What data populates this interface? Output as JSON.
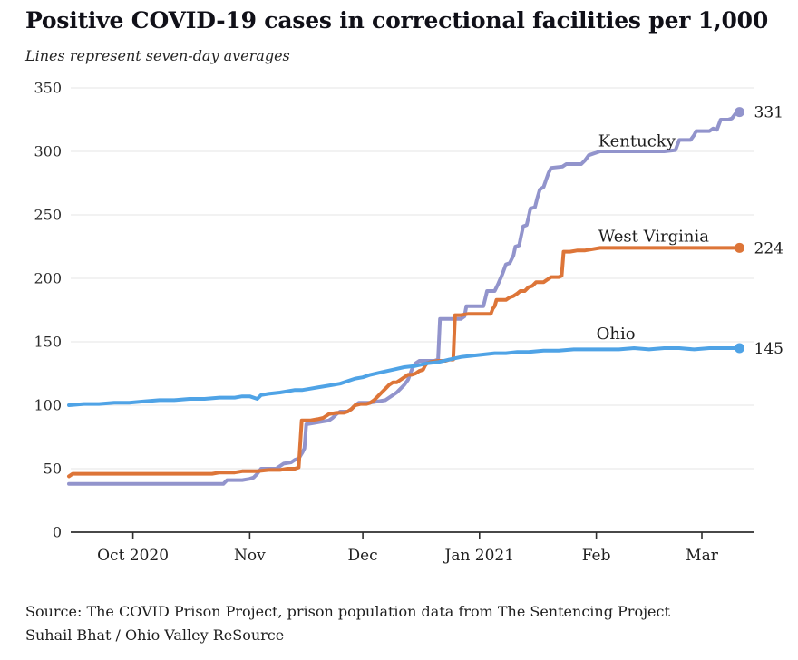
{
  "header": {
    "title": "Positive COVID-19 cases in correctional facilities per 1,000",
    "subtitle": "Lines represent seven-day averages"
  },
  "footer": {
    "source_line1": "Source: The COVID Prison Project, prison population data from The Sentencing Project",
    "source_line2": "Suhail Bhat / Ohio Valley ReSource"
  },
  "chart_data": {
    "type": "line",
    "title": "Positive COVID-19 cases in correctional facilities per 1,000",
    "subtitle": "Lines represent seven-day averages",
    "xlabel": "",
    "ylabel": "",
    "ylim": [
      0,
      350
    ],
    "grid": "horizontal",
    "legend_position": "inline-labels-right",
    "x_axis": {
      "unit": "days (day 0 ≈ mid-September 2020, day 178 ≈ March 11, 2021)",
      "ticks": [
        {
          "label": "Oct 2020",
          "day": 17
        },
        {
          "label": "Nov",
          "day": 48
        },
        {
          "label": "Dec",
          "day": 78
        },
        {
          "label": "Jan 2021",
          "day": 109
        },
        {
          "label": "Feb",
          "day": 140
        },
        {
          "label": "Mar",
          "day": 168
        }
      ]
    },
    "y_axis": {
      "ticks": [
        0,
        50,
        100,
        150,
        200,
        250,
        300,
        350
      ]
    },
    "series": [
      {
        "name": "Kentucky",
        "color": "#9294cc",
        "end_label": "331",
        "end_value": 331,
        "label_anchor": {
          "day": 140.5,
          "value": 304
        },
        "points": [
          [
            0,
            38
          ],
          [
            12,
            38
          ],
          [
            24,
            38
          ],
          [
            36,
            38
          ],
          [
            41,
            38
          ],
          [
            42,
            41
          ],
          [
            46,
            41
          ],
          [
            48,
            42
          ],
          [
            49,
            43
          ],
          [
            50,
            46
          ],
          [
            51,
            50
          ],
          [
            55,
            50
          ],
          [
            56,
            52
          ],
          [
            57,
            54
          ],
          [
            59,
            55
          ],
          [
            60,
            57
          ],
          [
            61,
            58
          ],
          [
            62,
            63
          ],
          [
            62.5,
            66
          ],
          [
            63,
            85
          ],
          [
            65,
            86
          ],
          [
            67,
            87
          ],
          [
            69,
            88
          ],
          [
            70,
            90
          ],
          [
            71,
            93
          ],
          [
            72,
            95
          ],
          [
            74,
            95
          ],
          [
            75,
            97
          ],
          [
            76,
            100
          ],
          [
            77,
            102
          ],
          [
            80,
            102
          ],
          [
            82,
            103
          ],
          [
            84,
            104
          ],
          [
            85,
            106
          ],
          [
            86,
            108
          ],
          [
            87,
            110
          ],
          [
            88,
            113
          ],
          [
            89,
            116
          ],
          [
            90,
            120
          ],
          [
            90.5,
            124
          ],
          [
            91,
            128
          ],
          [
            91.5,
            131
          ],
          [
            92,
            133
          ],
          [
            93,
            135
          ],
          [
            97,
            135
          ],
          [
            98,
            136
          ],
          [
            98.5,
            168
          ],
          [
            104,
            168
          ],
          [
            105,
            170
          ],
          [
            105.5,
            178
          ],
          [
            110,
            178
          ],
          [
            110.5,
            184
          ],
          [
            111,
            190
          ],
          [
            113,
            190
          ],
          [
            114,
            196
          ],
          [
            115,
            203
          ],
          [
            116,
            211
          ],
          [
            117,
            212
          ],
          [
            118,
            218
          ],
          [
            118.5,
            225
          ],
          [
            119.5,
            226
          ],
          [
            120,
            233
          ],
          [
            120.6,
            241
          ],
          [
            121.5,
            242
          ],
          [
            122,
            248
          ],
          [
            122.5,
            255
          ],
          [
            123.7,
            256
          ],
          [
            124.3,
            263
          ],
          [
            125,
            270
          ],
          [
            126,
            272
          ],
          [
            126.7,
            278
          ],
          [
            127.3,
            283
          ],
          [
            128,
            287
          ],
          [
            131,
            288
          ],
          [
            132,
            290
          ],
          [
            136,
            290
          ],
          [
            137,
            293
          ],
          [
            138,
            297
          ],
          [
            140,
            299
          ],
          [
            141,
            300
          ],
          [
            146,
            300
          ],
          [
            152,
            300
          ],
          [
            158,
            300
          ],
          [
            161,
            301
          ],
          [
            162,
            309
          ],
          [
            165,
            309
          ],
          [
            166,
            313
          ],
          [
            166.5,
            316
          ],
          [
            170,
            316
          ],
          [
            171,
            318
          ],
          [
            172,
            317
          ],
          [
            173,
            325
          ],
          [
            175,
            325
          ],
          [
            176,
            326
          ],
          [
            177,
            330
          ],
          [
            178,
            331
          ]
        ]
      },
      {
        "name": "West Virginia",
        "color": "#dd7538",
        "end_label": "224",
        "end_value": 224,
        "label_anchor": {
          "day": 140.5,
          "value": 229
        },
        "points": [
          [
            0,
            44
          ],
          [
            1,
            46
          ],
          [
            10,
            46
          ],
          [
            20,
            46
          ],
          [
            30,
            46
          ],
          [
            38,
            46
          ],
          [
            40,
            47
          ],
          [
            44,
            47
          ],
          [
            46,
            48
          ],
          [
            50,
            48
          ],
          [
            53,
            49
          ],
          [
            56,
            49
          ],
          [
            58,
            50
          ],
          [
            60,
            50
          ],
          [
            61,
            51
          ],
          [
            61.8,
            88
          ],
          [
            64,
            88
          ],
          [
            66,
            89
          ],
          [
            67.5,
            90
          ],
          [
            69,
            93
          ],
          [
            71,
            94
          ],
          [
            73,
            94
          ],
          [
            74,
            95
          ],
          [
            75,
            97
          ],
          [
            76,
            100
          ],
          [
            77.5,
            101
          ],
          [
            79,
            101
          ],
          [
            80,
            102
          ],
          [
            81,
            104
          ],
          [
            82,
            107
          ],
          [
            83,
            110
          ],
          [
            84,
            113
          ],
          [
            85,
            116
          ],
          [
            86,
            118
          ],
          [
            87,
            118
          ],
          [
            88,
            120
          ],
          [
            89,
            122
          ],
          [
            90,
            124
          ],
          [
            91,
            124
          ],
          [
            92,
            125
          ],
          [
            93,
            127
          ],
          [
            94,
            128
          ],
          [
            94.5,
            131
          ],
          [
            95,
            133
          ],
          [
            96,
            134
          ],
          [
            98,
            135
          ],
          [
            100,
            135
          ],
          [
            101,
            136
          ],
          [
            102,
            136
          ],
          [
            102.5,
            171
          ],
          [
            104,
            171
          ],
          [
            106,
            172
          ],
          [
            108,
            172
          ],
          [
            110,
            172
          ],
          [
            112,
            172
          ],
          [
            112.5,
            176
          ],
          [
            113,
            178
          ],
          [
            113.5,
            183
          ],
          [
            116,
            183
          ],
          [
            117,
            185
          ],
          [
            118,
            186
          ],
          [
            119,
            188
          ],
          [
            119.8,
            190
          ],
          [
            121,
            190
          ],
          [
            122,
            193
          ],
          [
            123,
            194
          ],
          [
            124,
            197
          ],
          [
            126,
            197
          ],
          [
            127,
            199
          ],
          [
            128,
            201
          ],
          [
            130,
            201
          ],
          [
            130.8,
            202
          ],
          [
            131.3,
            221
          ],
          [
            133,
            221
          ],
          [
            135,
            222
          ],
          [
            137,
            222
          ],
          [
            139,
            223
          ],
          [
            141,
            224
          ],
          [
            150,
            224
          ],
          [
            160,
            224
          ],
          [
            170,
            224
          ],
          [
            178,
            224
          ]
        ]
      },
      {
        "name": "Ohio",
        "color": "#4fa3e6",
        "end_label": "145",
        "end_value": 145,
        "label_anchor": {
          "day": 140,
          "value": 152
        },
        "points": [
          [
            0,
            100
          ],
          [
            4,
            101
          ],
          [
            8,
            101
          ],
          [
            12,
            102
          ],
          [
            16,
            102
          ],
          [
            20,
            103
          ],
          [
            24,
            104
          ],
          [
            28,
            104
          ],
          [
            32,
            105
          ],
          [
            36,
            105
          ],
          [
            40,
            106
          ],
          [
            44,
            106
          ],
          [
            46,
            107
          ],
          [
            48,
            107
          ],
          [
            50,
            105
          ],
          [
            51,
            108
          ],
          [
            53,
            109
          ],
          [
            56,
            110
          ],
          [
            58,
            111
          ],
          [
            60,
            112
          ],
          [
            62,
            112
          ],
          [
            64,
            113
          ],
          [
            66,
            114
          ],
          [
            68,
            115
          ],
          [
            70,
            116
          ],
          [
            72,
            117
          ],
          [
            74,
            119
          ],
          [
            76,
            121
          ],
          [
            78,
            122
          ],
          [
            80,
            124
          ],
          [
            83,
            126
          ],
          [
            86,
            128
          ],
          [
            89,
            130
          ],
          [
            92,
            131
          ],
          [
            95,
            133
          ],
          [
            98,
            134
          ],
          [
            101,
            136
          ],
          [
            104,
            138
          ],
          [
            107,
            139
          ],
          [
            110,
            140
          ],
          [
            113,
            141
          ],
          [
            116,
            141
          ],
          [
            119,
            142
          ],
          [
            122,
            142
          ],
          [
            126,
            143
          ],
          [
            130,
            143
          ],
          [
            134,
            144
          ],
          [
            138,
            144
          ],
          [
            142,
            144
          ],
          [
            146,
            144
          ],
          [
            150,
            145
          ],
          [
            154,
            144
          ],
          [
            158,
            145
          ],
          [
            162,
            145
          ],
          [
            166,
            144
          ],
          [
            170,
            145
          ],
          [
            174,
            145
          ],
          [
            178,
            145
          ]
        ]
      }
    ]
  }
}
